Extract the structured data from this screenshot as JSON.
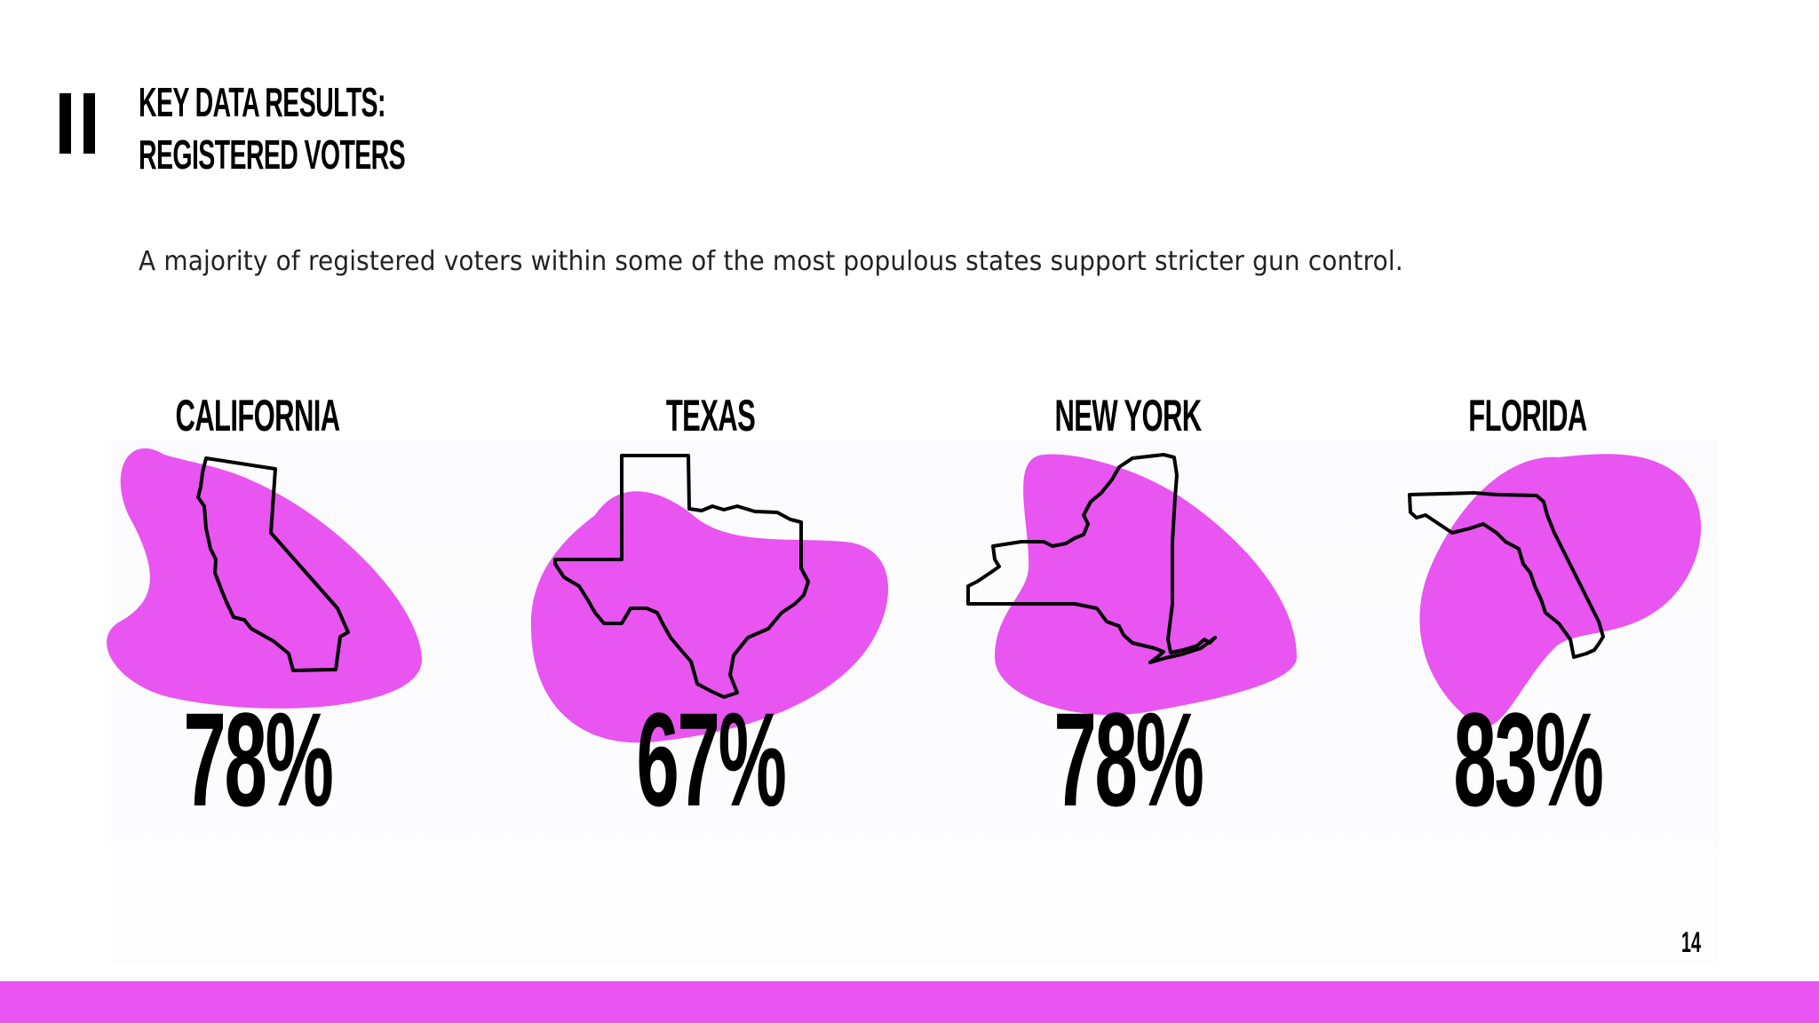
{
  "header": {
    "section_mark": "II",
    "title_line1": "KEY DATA RESULTS:",
    "title_line2": "REGISTERED VOTERS"
  },
  "subtitle": "A majority of registered voters within some of the most populous states support stricter gun control.",
  "states": [
    {
      "name": "CALIFORNIA",
      "value": "78%"
    },
    {
      "name": "TEXAS",
      "value": "67%"
    },
    {
      "name": "NEW YORK",
      "value": "78%"
    },
    {
      "name": "FLORIDA",
      "value": "83%"
    }
  ],
  "page_number": "14",
  "colors": {
    "accent": "#e855f0",
    "text": "#000000",
    "background": "#ffffff"
  },
  "icons": [
    "california-outline-icon",
    "texas-outline-icon",
    "new-york-outline-icon",
    "florida-outline-icon"
  ]
}
